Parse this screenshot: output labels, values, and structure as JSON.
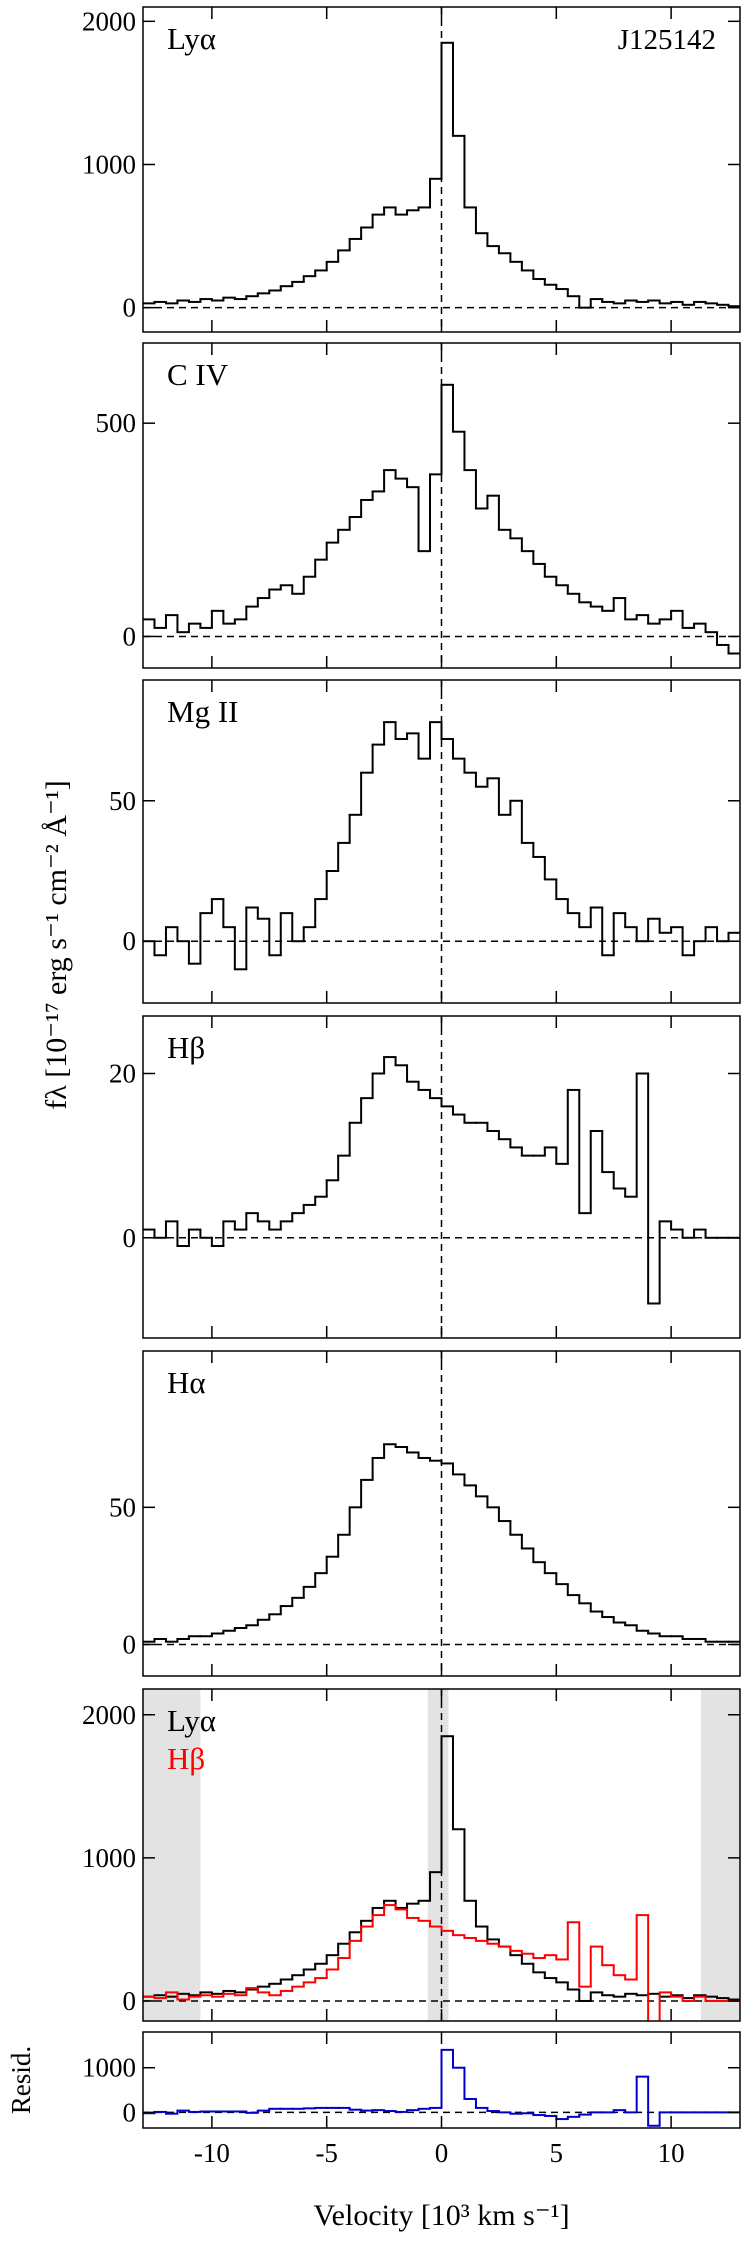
{
  "chart_data": [
    {
      "type": "step",
      "label": "Lyα",
      "annotation": "J125142",
      "xlim": [
        -13,
        13
      ],
      "xticks": [
        -10,
        -5,
        0,
        5,
        10
      ],
      "ylim": [
        -170,
        2100
      ],
      "yticks": [
        0,
        1000,
        2000
      ],
      "hline": 0,
      "vline": 0,
      "x": [
        -12.75,
        -12.25,
        -11.75,
        -11.25,
        -10.75,
        -10.25,
        -9.75,
        -9.25,
        -8.75,
        -8.25,
        -7.75,
        -7.25,
        -6.75,
        -6.25,
        -5.75,
        -5.25,
        -4.75,
        -4.25,
        -3.75,
        -3.25,
        -2.75,
        -2.25,
        -1.75,
        -1.25,
        -0.75,
        -0.25,
        0.25,
        0.75,
        1.25,
        1.75,
        2.25,
        2.75,
        3.25,
        3.75,
        4.25,
        4.75,
        5.25,
        5.75,
        6.25,
        6.75,
        7.25,
        7.75,
        8.25,
        8.75,
        9.25,
        9.75,
        10.25,
        10.75,
        11.25,
        11.75,
        12.25,
        12.75
      ],
      "series": [
        {
          "color": "#000000",
          "values": [
            30,
            40,
            30,
            50,
            40,
            60,
            50,
            70,
            60,
            80,
            100,
            120,
            150,
            180,
            220,
            260,
            320,
            400,
            480,
            560,
            650,
            700,
            650,
            680,
            700,
            900,
            1850,
            1200,
            700,
            520,
            430,
            380,
            320,
            260,
            200,
            160,
            130,
            80,
            0,
            60,
            40,
            30,
            50,
            40,
            50,
            30,
            40,
            20,
            40,
            30,
            20,
            10
          ]
        }
      ]
    },
    {
      "type": "step",
      "label": "C IV",
      "xlim": [
        -13,
        13
      ],
      "xticks": [
        -10,
        -5,
        0,
        5,
        10
      ],
      "ylim": [
        -74,
        688
      ],
      "yticks": [
        0,
        500
      ],
      "hline": 0,
      "vline": 0,
      "x": [
        -12.75,
        -12.25,
        -11.75,
        -11.25,
        -10.75,
        -10.25,
        -9.75,
        -9.25,
        -8.75,
        -8.25,
        -7.75,
        -7.25,
        -6.75,
        -6.25,
        -5.75,
        -5.25,
        -4.75,
        -4.25,
        -3.75,
        -3.25,
        -2.75,
        -2.25,
        -1.75,
        -1.25,
        -0.75,
        -0.25,
        0.25,
        0.75,
        1.25,
        1.75,
        2.25,
        2.75,
        3.25,
        3.75,
        4.25,
        4.75,
        5.25,
        5.75,
        6.25,
        6.75,
        7.25,
        7.75,
        8.25,
        8.75,
        9.25,
        9.75,
        10.25,
        10.75,
        11.25,
        11.75,
        12.25,
        12.75
      ],
      "series": [
        {
          "color": "#000000",
          "values": [
            40,
            20,
            50,
            10,
            30,
            20,
            60,
            30,
            40,
            70,
            90,
            110,
            120,
            100,
            140,
            180,
            220,
            250,
            280,
            320,
            340,
            390,
            370,
            350,
            200,
            380,
            590,
            480,
            390,
            300,
            330,
            250,
            230,
            200,
            170,
            140,
            120,
            100,
            80,
            70,
            60,
            90,
            40,
            50,
            30,
            40,
            60,
            20,
            30,
            10,
            -20,
            -40
          ]
        }
      ]
    },
    {
      "type": "step",
      "label": "Mg II",
      "xlim": [
        -13,
        13
      ],
      "xticks": [
        -10,
        -5,
        0,
        5,
        10
      ],
      "ylim": [
        -22,
        93
      ],
      "yticks": [
        0,
        50
      ],
      "hline": 0,
      "vline": 0,
      "x": [
        -12.75,
        -12.25,
        -11.75,
        -11.25,
        -10.75,
        -10.25,
        -9.75,
        -9.25,
        -8.75,
        -8.25,
        -7.75,
        -7.25,
        -6.75,
        -6.25,
        -5.75,
        -5.25,
        -4.75,
        -4.25,
        -3.75,
        -3.25,
        -2.75,
        -2.25,
        -1.75,
        -1.25,
        -0.75,
        -0.25,
        0.25,
        0.75,
        1.25,
        1.75,
        2.25,
        2.75,
        3.25,
        3.75,
        4.25,
        4.75,
        5.25,
        5.75,
        6.25,
        6.75,
        7.25,
        7.75,
        8.25,
        8.75,
        9.25,
        9.75,
        10.25,
        10.75,
        11.25,
        11.75,
        12.25,
        12.75
      ],
      "series": [
        {
          "color": "#000000",
          "values": [
            0,
            -5,
            5,
            0,
            -8,
            10,
            15,
            5,
            -10,
            12,
            8,
            -5,
            10,
            0,
            5,
            15,
            25,
            35,
            45,
            60,
            70,
            78,
            72,
            74,
            65,
            78,
            72,
            65,
            60,
            55,
            58,
            45,
            50,
            35,
            30,
            22,
            15,
            10,
            5,
            12,
            -5,
            10,
            5,
            0,
            8,
            3,
            5,
            -5,
            0,
            5,
            0,
            3
          ]
        }
      ]
    },
    {
      "type": "step",
      "label": "Hβ",
      "ylabel": "fλ [10⁻¹⁷ erg s⁻¹ cm⁻² Å⁻¹]",
      "xlim": [
        -13,
        13
      ],
      "xticks": [
        -10,
        -5,
        0,
        5,
        10
      ],
      "ylim": [
        -12.2,
        27
      ],
      "yticks": [
        0,
        20
      ],
      "hline": 0,
      "vline": 0,
      "x": [
        -12.75,
        -12.25,
        -11.75,
        -11.25,
        -10.75,
        -10.25,
        -9.75,
        -9.25,
        -8.75,
        -8.25,
        -7.75,
        -7.25,
        -6.75,
        -6.25,
        -5.75,
        -5.25,
        -4.75,
        -4.25,
        -3.75,
        -3.25,
        -2.75,
        -2.25,
        -1.75,
        -1.25,
        -0.75,
        -0.25,
        0.25,
        0.75,
        1.25,
        1.75,
        2.25,
        2.75,
        3.25,
        3.75,
        4.25,
        4.75,
        5.25,
        5.75,
        6.25,
        6.75,
        7.25,
        7.75,
        8.25,
        8.75,
        9.25,
        9.75,
        10.25,
        10.75,
        11.25,
        11.75,
        12.25,
        12.75
      ],
      "series": [
        {
          "color": "#000000",
          "values": [
            1,
            0,
            2,
            -1,
            1,
            0,
            -1,
            2,
            1,
            3,
            2,
            1,
            2,
            3,
            4,
            5,
            7,
            10,
            14,
            17,
            20,
            22,
            21,
            19,
            18,
            17,
            16,
            15,
            14,
            14,
            13,
            12,
            11,
            10,
            10,
            11,
            9,
            18,
            3,
            13,
            8,
            6,
            5,
            20,
            -8,
            2,
            1,
            0,
            1,
            0,
            0,
            0
          ]
        }
      ]
    },
    {
      "type": "step",
      "label": "Hα",
      "xlim": [
        -13,
        13
      ],
      "xticks": [
        -10,
        -5,
        0,
        5,
        10
      ],
      "ylim": [
        -11.5,
        107
      ],
      "yticks": [
        0,
        50
      ],
      "hline": 0,
      "vline": 0,
      "x": [
        -12.75,
        -12.25,
        -11.75,
        -11.25,
        -10.75,
        -10.25,
        -9.75,
        -9.25,
        -8.75,
        -8.25,
        -7.75,
        -7.25,
        -6.75,
        -6.25,
        -5.75,
        -5.25,
        -4.75,
        -4.25,
        -3.75,
        -3.25,
        -2.75,
        -2.25,
        -1.75,
        -1.25,
        -0.75,
        -0.25,
        0.25,
        0.75,
        1.25,
        1.75,
        2.25,
        2.75,
        3.25,
        3.75,
        4.25,
        4.75,
        5.25,
        5.75,
        6.25,
        6.75,
        7.25,
        7.75,
        8.25,
        8.75,
        9.25,
        9.75,
        10.25,
        10.75,
        11.25,
        11.75,
        12.25,
        12.75
      ],
      "series": [
        {
          "color": "#000000",
          "values": [
            1,
            2,
            1,
            2,
            3,
            3,
            4,
            5,
            6,
            7,
            9,
            11,
            14,
            17,
            21,
            26,
            32,
            40,
            50,
            60,
            68,
            73,
            72,
            70,
            68,
            67,
            66,
            62,
            58,
            54,
            50,
            45,
            40,
            35,
            30,
            26,
            22,
            18,
            15,
            12,
            10,
            8,
            7,
            5,
            4,
            3,
            3,
            2,
            2,
            1,
            1,
            1
          ]
        }
      ]
    },
    {
      "type": "step",
      "xlim": [
        -13,
        13
      ],
      "xticks": [
        -10,
        -5,
        0,
        5,
        10
      ],
      "ylim": [
        -140,
        2180
      ],
      "yticks": [
        0,
        1000,
        2000
      ],
      "hline": 0,
      "vline": 0,
      "shaded": [
        [
          -13,
          -10.5
        ],
        [
          -0.6,
          0.3
        ],
        [
          11.3,
          13
        ]
      ],
      "shade_color": "#e3e3e3",
      "x": [
        -12.75,
        -12.25,
        -11.75,
        -11.25,
        -10.75,
        -10.25,
        -9.75,
        -9.25,
        -8.75,
        -8.25,
        -7.75,
        -7.25,
        -6.75,
        -6.25,
        -5.75,
        -5.25,
        -4.75,
        -4.25,
        -3.75,
        -3.25,
        -2.75,
        -2.25,
        -1.75,
        -1.25,
        -0.75,
        -0.25,
        0.25,
        0.75,
        1.25,
        1.75,
        2.25,
        2.75,
        3.25,
        3.75,
        4.25,
        4.75,
        5.25,
        5.75,
        6.25,
        6.75,
        7.25,
        7.75,
        8.25,
        8.75,
        9.25,
        9.75,
        10.25,
        10.75,
        11.25,
        11.75,
        12.25,
        12.75
      ],
      "series": [
        {
          "name": "Lyα",
          "color": "#000000",
          "values": [
            30,
            40,
            30,
            50,
            40,
            60,
            50,
            70,
            60,
            80,
            100,
            120,
            150,
            180,
            220,
            260,
            320,
            400,
            480,
            560,
            650,
            700,
            650,
            680,
            700,
            900,
            1850,
            1200,
            700,
            520,
            430,
            380,
            320,
            260,
            200,
            160,
            130,
            80,
            0,
            60,
            40,
            30,
            50,
            40,
            50,
            30,
            40,
            20,
            40,
            30,
            20,
            10
          ]
        },
        {
          "name": "Hβ",
          "color": "#ff0000",
          "values": [
            30,
            20,
            60,
            10,
            30,
            40,
            30,
            50,
            40,
            90,
            60,
            40,
            70,
            100,
            130,
            160,
            220,
            300,
            420,
            520,
            600,
            670,
            640,
            580,
            560,
            520,
            490,
            460,
            440,
            420,
            400,
            380,
            350,
            330,
            300,
            320,
            290,
            550,
            100,
            380,
            250,
            180,
            150,
            600,
            -200,
            60,
            30,
            0,
            30,
            0,
            0,
            0
          ]
        }
      ]
    },
    {
      "type": "step",
      "ylabel": "Resid.",
      "xlabel": "Velocity [10³ km s⁻¹]",
      "xlim": [
        -13,
        13
      ],
      "xticks": [
        -10,
        -5,
        0,
        5,
        10
      ],
      "ylim": [
        -350,
        1800
      ],
      "yticks": [
        0,
        1000
      ],
      "hline": 0,
      "x": [
        -12.75,
        -12.25,
        -11.75,
        -11.25,
        -10.75,
        -10.25,
        -9.75,
        -9.25,
        -8.75,
        -8.25,
        -7.75,
        -7.25,
        -6.75,
        -6.25,
        -5.75,
        -5.25,
        -4.75,
        -4.25,
        -3.75,
        -3.25,
        -2.75,
        -2.25,
        -1.75,
        -1.25,
        -0.75,
        -0.25,
        0.25,
        0.75,
        1.25,
        1.75,
        2.25,
        2.75,
        3.25,
        3.75,
        4.25,
        4.75,
        5.25,
        5.75,
        6.25,
        6.75,
        7.25,
        7.75,
        8.25,
        8.75,
        9.25,
        9.75,
        10.25,
        10.75,
        11.25,
        11.75,
        12.25,
        12.75
      ],
      "series": [
        {
          "color": "#0000cc",
          "values": [
            -20,
            10,
            -30,
            40,
            10,
            20,
            20,
            20,
            20,
            -10,
            40,
            80,
            80,
            80,
            90,
            100,
            100,
            100,
            60,
            40,
            50,
            30,
            10,
            50,
            80,
            100,
            1400,
            1000,
            300,
            100,
            30,
            0,
            -30,
            -20,
            -60,
            -80,
            -150,
            -100,
            -50,
            0,
            0,
            50,
            0,
            800,
            -300,
            0,
            0,
            0,
            0,
            0,
            0,
            0
          ]
        }
      ]
    }
  ]
}
